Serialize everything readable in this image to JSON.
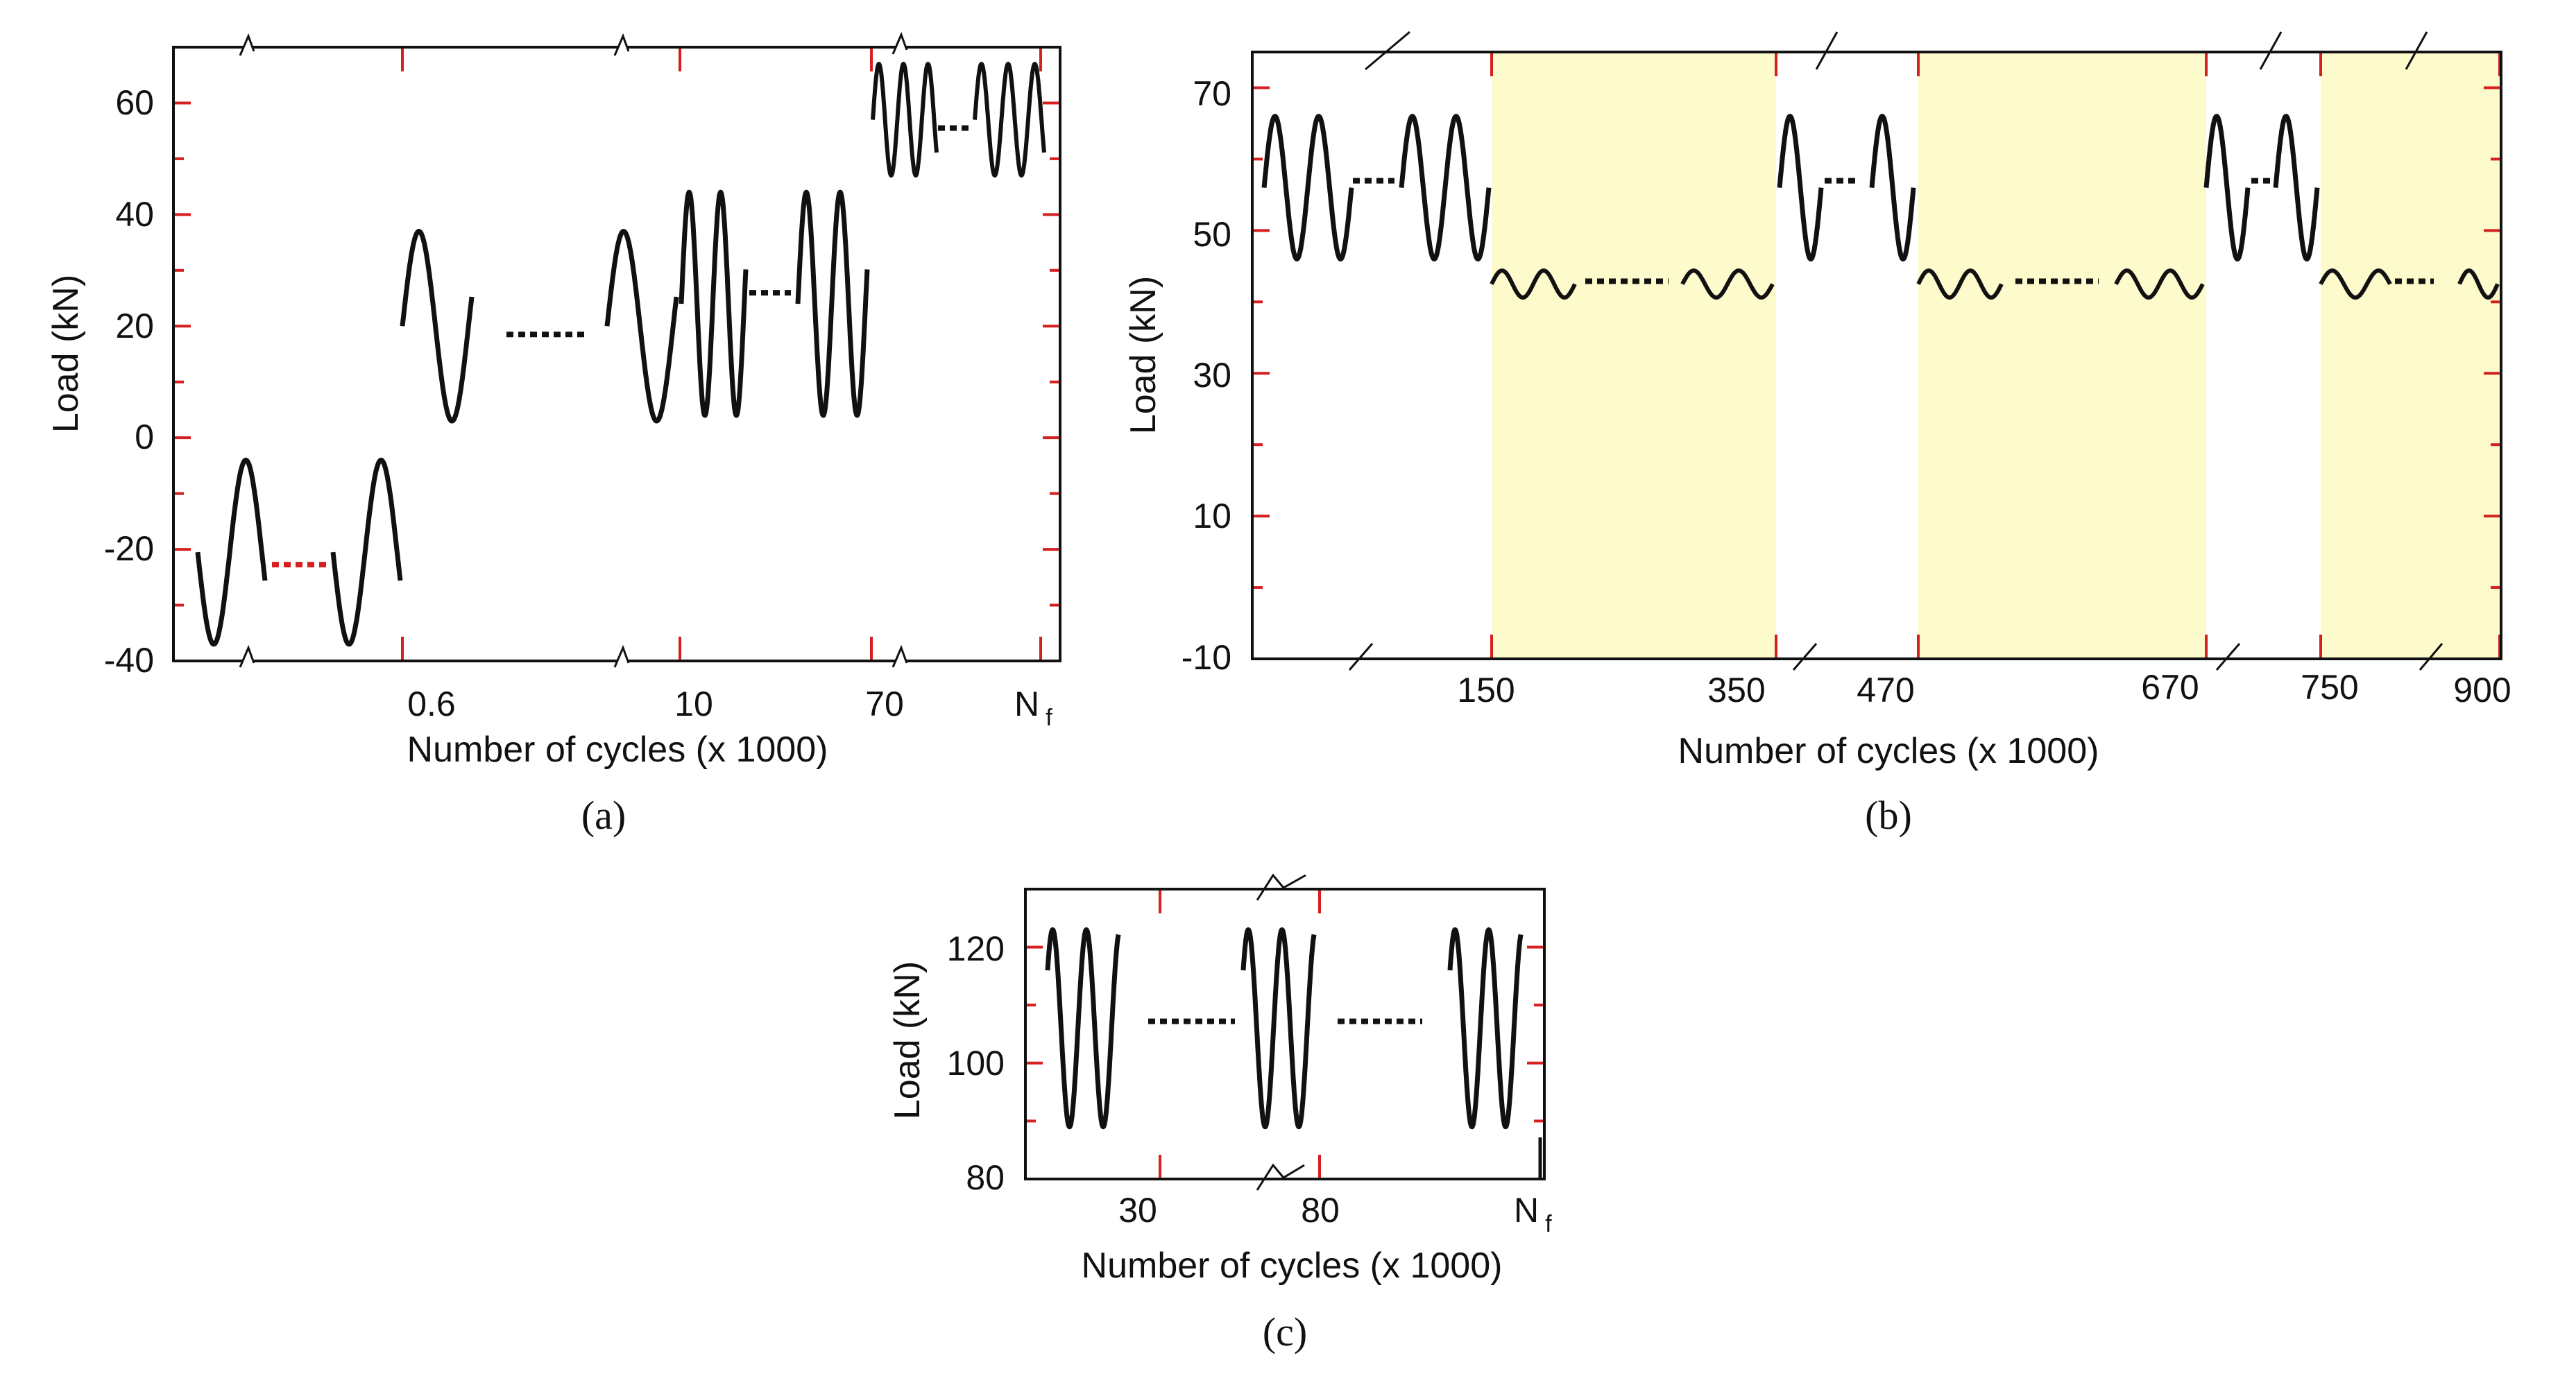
{
  "chart_data": [
    {
      "type": "line",
      "panel_label": "(a)",
      "title": "",
      "xlabel": "Number of cycles (x 1000)",
      "ylabel": "Load (kN)",
      "ylim": [
        -40,
        70
      ],
      "yticks": [
        -40,
        -20,
        0,
        20,
        40,
        60
      ],
      "yticklabels": [
        "-40",
        "-20",
        "0",
        "20",
        "40",
        "60"
      ],
      "xbreak_ticks": [
        "0.6",
        "10",
        "70",
        "N",
        "f"
      ],
      "segments": [
        {
          "stage": "0 - 0.6",
          "load_min": -37,
          "load_max": -4,
          "dots_color": "#d62020"
        },
        {
          "stage": "0.6 - 10",
          "load_min": 3,
          "load_max": 37,
          "dots_color": "#111111"
        },
        {
          "stage": "10 - 70",
          "load_min": 4,
          "load_max": 44,
          "dots_color": "#111111"
        },
        {
          "stage": "70 - Nf",
          "load_min": 47,
          "load_max": 67,
          "dots_color": "#111111"
        }
      ],
      "grid": false
    },
    {
      "type": "line",
      "panel_label": "(b)",
      "title": "",
      "xlabel": "Number of cycles (x 1000)",
      "ylabel": "Load (kN)",
      "ylim": [
        -10,
        75
      ],
      "yticks": [
        -10,
        10,
        30,
        50,
        70
      ],
      "yticklabels": [
        "-10",
        "10",
        "30",
        "50",
        "70"
      ],
      "xticklabels": [
        "150",
        "350",
        "470",
        "670",
        "750",
        "900"
      ],
      "main_cycles": {
        "load_min": 46,
        "load_max": 66
      },
      "rest_cycles": {
        "load_min": 41,
        "load_max": 44
      },
      "shaded_intervals": [
        [
          150,
          350
        ],
        [
          470,
          670
        ],
        [
          750,
          900
        ]
      ],
      "shade_color": "#fdfbcc",
      "grid": false
    },
    {
      "type": "line",
      "panel_label": "(c)",
      "title": "",
      "xlabel": "Number of cycles (x 1000)",
      "ylabel": "Load (kN)",
      "ylim": [
        80,
        130
      ],
      "yticks": [
        80,
        100,
        120
      ],
      "yticklabels": [
        "80",
        "100",
        "120"
      ],
      "xticklabels": [
        "30",
        "80",
        "N",
        "f"
      ],
      "cycles": {
        "load_min": 89,
        "load_max": 123
      },
      "grid": false
    }
  ],
  "colors": {
    "axis": "#111111",
    "tick": "#d62020",
    "wave": "#111111",
    "shade": "#fdfbcc"
  }
}
